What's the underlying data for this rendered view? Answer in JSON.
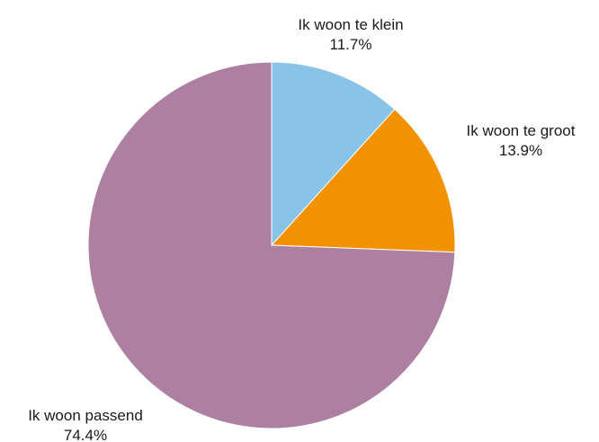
{
  "chart_data": {
    "type": "pie",
    "title": "",
    "start_angle_deg": 0,
    "direction": "clockwise",
    "slices": [
      {
        "label": "Ik woon te klein",
        "value": 11.7,
        "value_label": "11.7%",
        "color": "#89c4e8"
      },
      {
        "label": "Ik woon te groot",
        "value": 13.9,
        "value_label": "13.9%",
        "color": "#f29200"
      },
      {
        "label": "Ik woon passend",
        "value": 74.4,
        "value_label": "74.4%",
        "color": "#ad80a2"
      }
    ]
  }
}
